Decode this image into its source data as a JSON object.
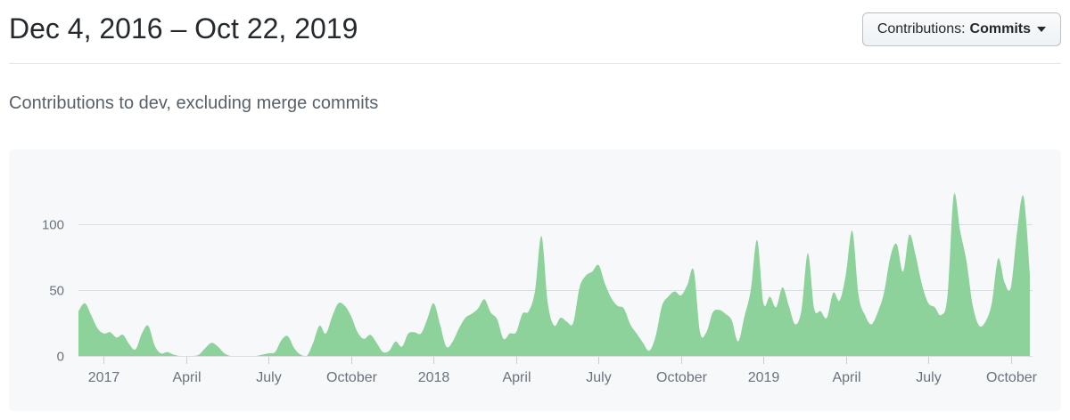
{
  "header": {
    "date_range": "Dec 4, 2016 – Oct 22, 2019",
    "filter_button": {
      "label_prefix": "Contributions:",
      "selected": "Commits",
      "caret_icon": "caret-down"
    }
  },
  "subtitle": "Contributions to dev, excluding merge commits",
  "colors": {
    "area_fill": "#8dd19b",
    "card_background": "#f6f8fa",
    "grid_line": "#dadde0",
    "tick_line": "#c8cdd2",
    "axis_text": "#6a737d"
  },
  "chart_data": {
    "type": "area",
    "series_name": "Commits per week",
    "period_start": "Dec 4, 2016",
    "period_end": "Oct 22, 2019",
    "interval": "weekly",
    "ylim": [
      0,
      130
    ],
    "y_ticks": [
      0,
      50,
      100
    ],
    "grid": true,
    "legend": "none",
    "x_ticks": [
      {
        "label": "2017",
        "week": 4
      },
      {
        "label": "April",
        "week": 17
      },
      {
        "label": "July",
        "week": 30
      },
      {
        "label": "October",
        "week": 43
      },
      {
        "label": "2018",
        "week": 56
      },
      {
        "label": "April",
        "week": 69
      },
      {
        "label": "July",
        "week": 82
      },
      {
        "label": "October",
        "week": 95
      },
      {
        "label": "2019",
        "week": 108
      },
      {
        "label": "April",
        "week": 121
      },
      {
        "label": "July",
        "week": 134
      },
      {
        "label": "October",
        "week": 147
      }
    ],
    "values": [
      34,
      40,
      31,
      21,
      17,
      18,
      14,
      16,
      9,
      5,
      17,
      23,
      8,
      2,
      3,
      1,
      0,
      0,
      0,
      1,
      6,
      10,
      7,
      2,
      0,
      0,
      0,
      0,
      0,
      1,
      2,
      3,
      12,
      15,
      6,
      1,
      0,
      10,
      23,
      17,
      30,
      40,
      38,
      30,
      18,
      13,
      16,
      10,
      3,
      4,
      11,
      7,
      17,
      18,
      17,
      28,
      40,
      24,
      7,
      11,
      21,
      29,
      32,
      36,
      43,
      33,
      28,
      13,
      17,
      18,
      32,
      34,
      50,
      91,
      40,
      23,
      29,
      26,
      25,
      52,
      61,
      64,
      69,
      55,
      44,
      38,
      36,
      24,
      17,
      10,
      4,
      15,
      38,
      45,
      49,
      46,
      54,
      65,
      18,
      18,
      33,
      35,
      32,
      27,
      11,
      30,
      50,
      88,
      40,
      45,
      37,
      52,
      38,
      24,
      35,
      78,
      36,
      34,
      29,
      48,
      42,
      62,
      95,
      46,
      31,
      24,
      33,
      48,
      75,
      85,
      64,
      92,
      76,
      54,
      40,
      37,
      31,
      45,
      122,
      95,
      72,
      38,
      23,
      26,
      40,
      74,
      56,
      52,
      95,
      121,
      62
    ]
  }
}
